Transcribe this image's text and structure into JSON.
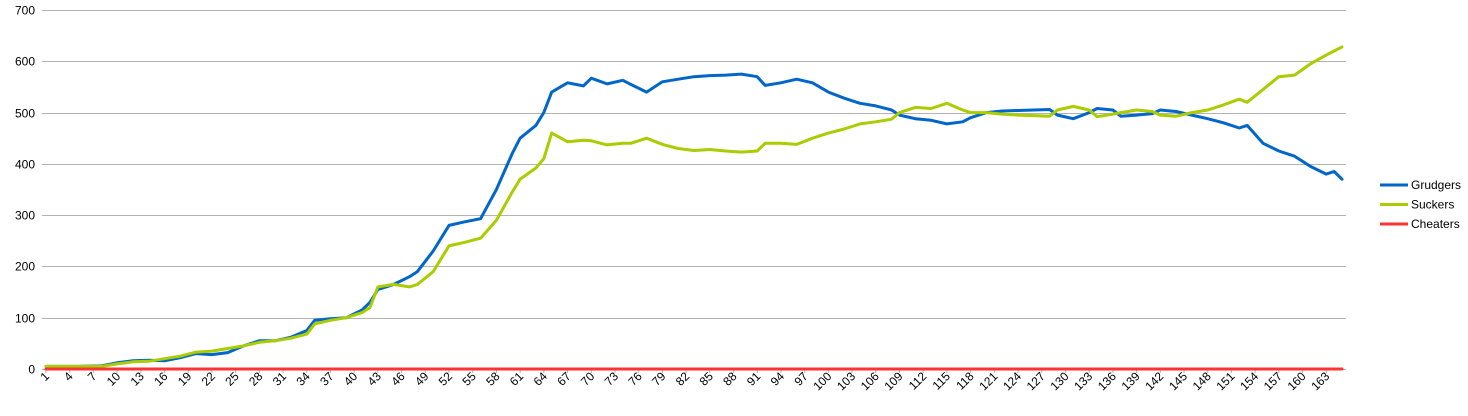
{
  "chart_data": {
    "type": "line",
    "title": "",
    "xlabel": "",
    "ylabel": "",
    "ylim": [
      0,
      700
    ],
    "yticks": [
      0,
      100,
      200,
      300,
      400,
      500,
      600,
      700
    ],
    "x_range": [
      1,
      165
    ],
    "xtick_labels": [
      "1",
      "4",
      "7",
      "10",
      "13",
      "16",
      "19",
      "22",
      "25",
      "28",
      "31",
      "34",
      "37",
      "40",
      "43",
      "46",
      "49",
      "52",
      "55",
      "58",
      "61",
      "64",
      "67",
      "70",
      "73",
      "76",
      "79",
      "82",
      "85",
      "88",
      "91",
      "94",
      "97",
      "100",
      "103",
      "106",
      "109",
      "112",
      "115",
      "118",
      "121",
      "124",
      "127",
      "130",
      "133",
      "136",
      "139",
      "142",
      "145",
      "148",
      "151",
      "154",
      "157",
      "160",
      "163"
    ],
    "grid": "horizontal",
    "legend_position": "right",
    "series": [
      {
        "name": "Grudgers",
        "color": "#0066cc",
        "points": [
          [
            1,
            5
          ],
          [
            5,
            5
          ],
          [
            8,
            6
          ],
          [
            10,
            12
          ],
          [
            12,
            16
          ],
          [
            14,
            17
          ],
          [
            16,
            16
          ],
          [
            18,
            22
          ],
          [
            20,
            30
          ],
          [
            22,
            28
          ],
          [
            24,
            32
          ],
          [
            26,
            45
          ],
          [
            28,
            55
          ],
          [
            30,
            55
          ],
          [
            32,
            62
          ],
          [
            34,
            75
          ],
          [
            35,
            95
          ],
          [
            37,
            98
          ],
          [
            39,
            100
          ],
          [
            41,
            115
          ],
          [
            42,
            130
          ],
          [
            43,
            155
          ],
          [
            45,
            165
          ],
          [
            47,
            180
          ],
          [
            48,
            190
          ],
          [
            50,
            230
          ],
          [
            52,
            280
          ],
          [
            54,
            287
          ],
          [
            56,
            293
          ],
          [
            58,
            350
          ],
          [
            60,
            420
          ],
          [
            61,
            450
          ],
          [
            63,
            475
          ],
          [
            64,
            500
          ],
          [
            65,
            540
          ],
          [
            67,
            558
          ],
          [
            69,
            552
          ],
          [
            70,
            567
          ],
          [
            72,
            556
          ],
          [
            74,
            563
          ],
          [
            75,
            555
          ],
          [
            77,
            540
          ],
          [
            79,
            560
          ],
          [
            81,
            565
          ],
          [
            83,
            570
          ],
          [
            85,
            572
          ],
          [
            87,
            573
          ],
          [
            89,
            575
          ],
          [
            91,
            570
          ],
          [
            92,
            553
          ],
          [
            94,
            558
          ],
          [
            96,
            565
          ],
          [
            98,
            558
          ],
          [
            100,
            540
          ],
          [
            102,
            528
          ],
          [
            104,
            518
          ],
          [
            106,
            513
          ],
          [
            108,
            505
          ],
          [
            109,
            495
          ],
          [
            111,
            488
          ],
          [
            113,
            485
          ],
          [
            115,
            478
          ],
          [
            117,
            482
          ],
          [
            118,
            490
          ],
          [
            120,
            500
          ],
          [
            122,
            503
          ],
          [
            124,
            504
          ],
          [
            126,
            505
          ],
          [
            128,
            506
          ],
          [
            129,
            495
          ],
          [
            131,
            488
          ],
          [
            133,
            500
          ],
          [
            134,
            508
          ],
          [
            136,
            505
          ],
          [
            137,
            493
          ],
          [
            139,
            495
          ],
          [
            141,
            498
          ],
          [
            142,
            505
          ],
          [
            144,
            502
          ],
          [
            146,
            495
          ],
          [
            148,
            488
          ],
          [
            150,
            480
          ],
          [
            152,
            470
          ],
          [
            153,
            475
          ],
          [
            155,
            440
          ],
          [
            157,
            425
          ],
          [
            159,
            415
          ],
          [
            161,
            395
          ],
          [
            163,
            380
          ],
          [
            164,
            385
          ],
          [
            165,
            370
          ]
        ]
      },
      {
        "name": "Suckers",
        "color": "#aacc00",
        "points": [
          [
            1,
            5
          ],
          [
            5,
            5
          ],
          [
            8,
            5
          ],
          [
            10,
            10
          ],
          [
            12,
            14
          ],
          [
            14,
            15
          ],
          [
            16,
            20
          ],
          [
            18,
            25
          ],
          [
            20,
            33
          ],
          [
            22,
            35
          ],
          [
            24,
            40
          ],
          [
            26,
            45
          ],
          [
            28,
            52
          ],
          [
            30,
            55
          ],
          [
            32,
            60
          ],
          [
            34,
            68
          ],
          [
            35,
            88
          ],
          [
            37,
            95
          ],
          [
            39,
            100
          ],
          [
            41,
            110
          ],
          [
            42,
            120
          ],
          [
            43,
            160
          ],
          [
            45,
            165
          ],
          [
            47,
            160
          ],
          [
            48,
            165
          ],
          [
            50,
            190
          ],
          [
            52,
            240
          ],
          [
            54,
            247
          ],
          [
            56,
            255
          ],
          [
            58,
            290
          ],
          [
            60,
            345
          ],
          [
            61,
            370
          ],
          [
            63,
            392
          ],
          [
            64,
            410
          ],
          [
            65,
            460
          ],
          [
            67,
            443
          ],
          [
            69,
            446
          ],
          [
            70,
            445
          ],
          [
            72,
            437
          ],
          [
            74,
            440
          ],
          [
            75,
            440
          ],
          [
            77,
            450
          ],
          [
            79,
            438
          ],
          [
            81,
            430
          ],
          [
            83,
            426
          ],
          [
            85,
            428
          ],
          [
            87,
            425
          ],
          [
            89,
            423
          ],
          [
            91,
            425
          ],
          [
            92,
            440
          ],
          [
            94,
            440
          ],
          [
            96,
            438
          ],
          [
            98,
            450
          ],
          [
            100,
            460
          ],
          [
            102,
            468
          ],
          [
            104,
            478
          ],
          [
            106,
            482
          ],
          [
            108,
            487
          ],
          [
            109,
            500
          ],
          [
            111,
            510
          ],
          [
            113,
            508
          ],
          [
            115,
            518
          ],
          [
            117,
            505
          ],
          [
            118,
            500
          ],
          [
            120,
            500
          ],
          [
            122,
            497
          ],
          [
            124,
            495
          ],
          [
            126,
            494
          ],
          [
            128,
            493
          ],
          [
            129,
            505
          ],
          [
            131,
            512
          ],
          [
            133,
            505
          ],
          [
            134,
            492
          ],
          [
            136,
            497
          ],
          [
            137,
            500
          ],
          [
            139,
            505
          ],
          [
            141,
            502
          ],
          [
            142,
            495
          ],
          [
            144,
            493
          ],
          [
            146,
            500
          ],
          [
            148,
            505
          ],
          [
            150,
            515
          ],
          [
            152,
            526
          ],
          [
            153,
            520
          ],
          [
            155,
            545
          ],
          [
            157,
            570
          ],
          [
            159,
            573
          ],
          [
            161,
            595
          ],
          [
            163,
            612
          ],
          [
            164,
            620
          ],
          [
            165,
            628
          ]
        ]
      },
      {
        "name": "Cheaters",
        "color": "#ff3333",
        "points": [
          [
            1,
            0
          ],
          [
            165,
            0
          ]
        ]
      }
    ]
  }
}
